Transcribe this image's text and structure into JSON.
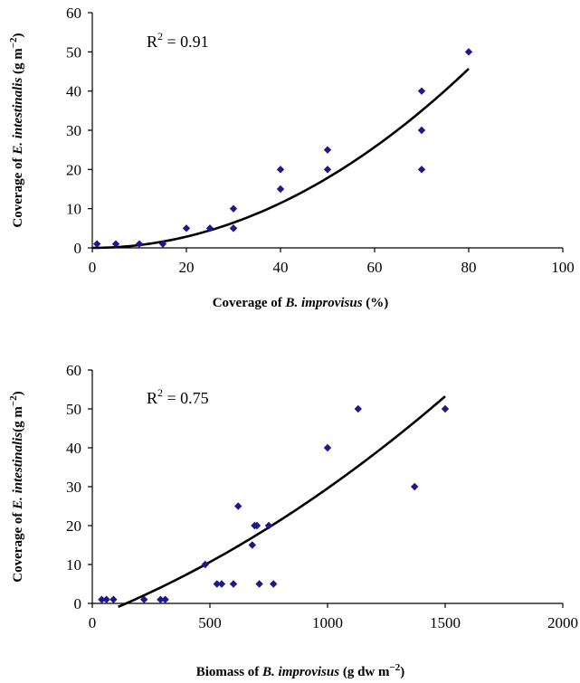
{
  "chart_data": [
    {
      "type": "scatter",
      "r2_label": "R",
      "r2_sup": "2",
      "r2_value": " = 0.91",
      "xlabel": {
        "pre": "Coverage of ",
        "italic": "B. improvisus",
        "post": " (%)"
      },
      "ylabel": {
        "pre": "Coverage of ",
        "italic": "E. intestinalis",
        "post": " (g m",
        "sup": "−2",
        "end": ")"
      },
      "xlim": [
        0,
        100
      ],
      "ylim": [
        0,
        60
      ],
      "xticks": [
        0,
        20,
        40,
        60,
        80,
        100
      ],
      "yticks": [
        0,
        10,
        20,
        30,
        40,
        50,
        60
      ],
      "grid": false,
      "marker_color": "#1a1a8c",
      "trend_color": "#000000",
      "points": [
        [
          1,
          1
        ],
        [
          5,
          1
        ],
        [
          10,
          1
        ],
        [
          15,
          1
        ],
        [
          20,
          5
        ],
        [
          25,
          5
        ],
        [
          30,
          5
        ],
        [
          30,
          5
        ],
        [
          30,
          10
        ],
        [
          40,
          15
        ],
        [
          40,
          20
        ],
        [
          50,
          20
        ],
        [
          50,
          25
        ],
        [
          70,
          20
        ],
        [
          70,
          30
        ],
        [
          70,
          40
        ],
        [
          80,
          50
        ]
      ],
      "trendline": {
        "type": "polynomial",
        "coefficients": [
          0,
          0.0,
          0.00714
        ],
        "x_range": [
          0,
          80
        ]
      }
    },
    {
      "type": "scatter",
      "r2_label": "R",
      "r2_sup": "2",
      "r2_value": " = 0.75",
      "xlabel": {
        "pre": "Biomass of ",
        "italic": "B. improvisus",
        "post": " (g dw m",
        "sup": "−2",
        "end": ")"
      },
      "ylabel": {
        "pre": "Coverage of ",
        "italic": "E. intestinalis",
        "post": "(g m",
        "sup": "−2",
        "end": ")"
      },
      "xlim": [
        0,
        2000
      ],
      "ylim": [
        0,
        60
      ],
      "xticks": [
        0,
        500,
        1000,
        1500,
        2000
      ],
      "yticks": [
        0,
        10,
        20,
        30,
        40,
        50,
        60
      ],
      "grid": false,
      "marker_color": "#1a1a8c",
      "trend_color": "#000000",
      "points": [
        [
          40,
          1
        ],
        [
          60,
          1
        ],
        [
          90,
          1
        ],
        [
          220,
          1
        ],
        [
          290,
          1
        ],
        [
          310,
          1
        ],
        [
          480,
          10
        ],
        [
          530,
          5
        ],
        [
          550,
          5
        ],
        [
          600,
          5
        ],
        [
          620,
          25
        ],
        [
          680,
          15
        ],
        [
          690,
          20
        ],
        [
          700,
          20
        ],
        [
          710,
          5
        ],
        [
          750,
          20
        ],
        [
          770,
          5
        ],
        [
          1000,
          40
        ],
        [
          1130,
          50
        ],
        [
          1370,
          30
        ],
        [
          1500,
          50
        ]
      ],
      "trendline": {
        "type": "polynomial",
        "coefficients": [
          -3.62,
          0.0238,
          9.4e-06
        ],
        "x_range": [
          110,
          1500
        ]
      }
    }
  ]
}
